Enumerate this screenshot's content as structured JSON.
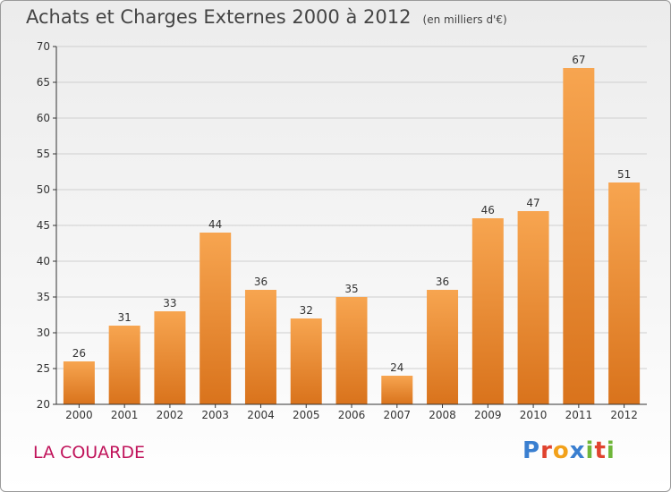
{
  "title": "Achats et Charges Externes 2000 à 2012",
  "unit_note": "(en milliers d'€)",
  "commune": "LA COUARDE",
  "logo": {
    "text": "Proxiti",
    "letters": [
      {
        "char": "P",
        "color": "#3a7fd0"
      },
      {
        "char": "r",
        "color": "#e0432f"
      },
      {
        "char": "o",
        "color": "#f2a11a"
      },
      {
        "char": "x",
        "color": "#3a7fd0"
      },
      {
        "char": "i",
        "color": "#6fb63a"
      },
      {
        "char": "t",
        "color": "#e0432f"
      },
      {
        "char": "i",
        "color": "#6fb63a"
      }
    ]
  },
  "colors": {
    "bar_light": "#f7a550",
    "bar_dark": "#d9731c",
    "axis": "#333333",
    "grid": "#cfcfcf",
    "text": "#333333"
  },
  "chart_data": {
    "type": "bar",
    "categories": [
      "2000",
      "2001",
      "2002",
      "2003",
      "2004",
      "2005",
      "2006",
      "2007",
      "2008",
      "2009",
      "2010",
      "2011",
      "2012"
    ],
    "values": [
      26,
      31,
      33,
      44,
      36,
      32,
      35,
      24,
      36,
      46,
      47,
      67,
      51
    ],
    "ylim": [
      20,
      70
    ],
    "yticks": [
      20,
      25,
      30,
      35,
      40,
      45,
      50,
      55,
      60,
      65,
      70
    ],
    "grid": true
  }
}
